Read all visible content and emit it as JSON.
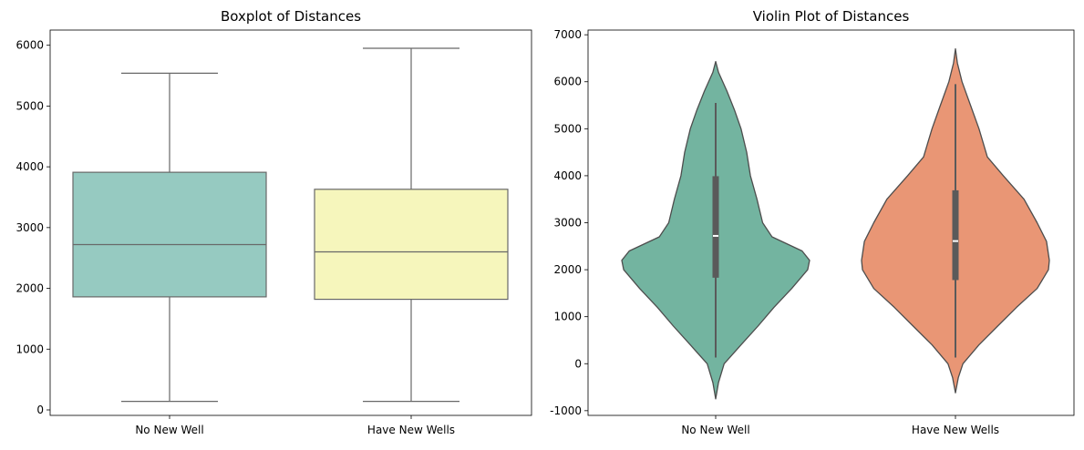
{
  "chart_data": [
    {
      "type": "box",
      "title": "Boxplot of Distances",
      "xlabel": "",
      "ylabel": "",
      "categories": [
        "No New Well",
        "Have New Wells"
      ],
      "ylim": [
        -90,
        6250
      ],
      "yticks": [
        0,
        1000,
        2000,
        3000,
        4000,
        5000,
        6000
      ],
      "boxes": [
        {
          "category": "No New Well",
          "min": 140,
          "q1": 1860,
          "median": 2720,
          "q3": 3910,
          "max": 5540,
          "color": "#96cac1"
        },
        {
          "category": "Have New Wells",
          "min": 140,
          "q1": 1820,
          "median": 2600,
          "q3": 3630,
          "max": 5950,
          "color": "#f6f6bc"
        }
      ]
    },
    {
      "type": "violin",
      "title": "Violin Plot of Distances",
      "xlabel": "",
      "ylabel": "",
      "categories": [
        "No New Well",
        "Have New Wells"
      ],
      "ylim": [
        -1100,
        7100
      ],
      "yticks": [
        -1000,
        0,
        1000,
        2000,
        3000,
        4000,
        5000,
        6000,
        7000
      ],
      "violins": [
        {
          "category": "No New Well",
          "color": "#73b4a0",
          "q1": 1830,
          "median": 2720,
          "q3": 3990,
          "whisker_low": 130,
          "whisker_high": 5550,
          "density": [
            [
              -750,
              0
            ],
            [
              -400,
              0.03
            ],
            [
              0,
              0.09
            ],
            [
              400,
              0.27
            ],
            [
              800,
              0.45
            ],
            [
              1200,
              0.62
            ],
            [
              1600,
              0.81
            ],
            [
              2000,
              0.98
            ],
            [
              2200,
              1.0
            ],
            [
              2400,
              0.92
            ],
            [
              2700,
              0.6
            ],
            [
              3000,
              0.5
            ],
            [
              3500,
              0.44
            ],
            [
              4000,
              0.37
            ],
            [
              4500,
              0.33
            ],
            [
              5000,
              0.27
            ],
            [
              5400,
              0.2
            ],
            [
              5800,
              0.12
            ],
            [
              6200,
              0.03
            ],
            [
              6430,
              0
            ]
          ]
        },
        {
          "category": "Have New Wells",
          "color": "#e99675",
          "q1": 1780,
          "median": 2610,
          "q3": 3690,
          "whisker_low": 130,
          "whisker_high": 5950,
          "density": [
            [
              -620,
              0
            ],
            [
              -300,
              0.03
            ],
            [
              0,
              0.08
            ],
            [
              400,
              0.25
            ],
            [
              800,
              0.45
            ],
            [
              1200,
              0.65
            ],
            [
              1600,
              0.87
            ],
            [
              2000,
              0.99
            ],
            [
              2200,
              1.0
            ],
            [
              2600,
              0.97
            ],
            [
              3000,
              0.87
            ],
            [
              3500,
              0.73
            ],
            [
              4000,
              0.51
            ],
            [
              4400,
              0.34
            ],
            [
              5000,
              0.25
            ],
            [
              5500,
              0.16
            ],
            [
              6000,
              0.07
            ],
            [
              6400,
              0.02
            ],
            [
              6700,
              0
            ]
          ]
        }
      ]
    }
  ]
}
